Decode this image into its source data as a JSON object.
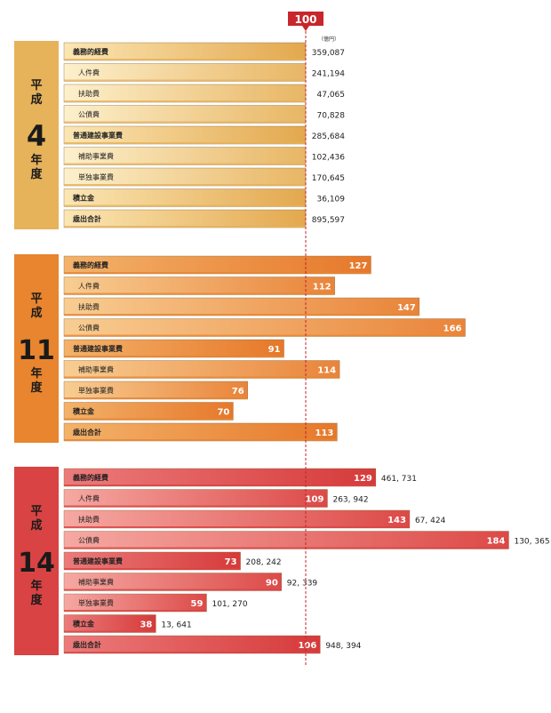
{
  "chart_data": {
    "type": "bar",
    "orientation": "horizontal",
    "reference": {
      "value": 100,
      "label": "100"
    },
    "unit_label": "（億円）",
    "categories": [
      "義務的経費",
      "人件費",
      "扶助費",
      "公債費",
      "普通建設事業費",
      "補助事業費",
      "単独事業費",
      "積立金",
      "歳出合計"
    ],
    "sub_items": [
      false,
      true,
      true,
      true,
      false,
      true,
      true,
      false,
      false
    ],
    "groups": [
      {
        "era": "平成",
        "number": "4",
        "suffix": "年度",
        "color": "#e6b25a",
        "index_values": [
          100,
          100,
          100,
          100,
          100,
          100,
          100,
          100,
          100
        ],
        "amounts": [
          "359,087",
          "241,194",
          "47,065",
          "70,828",
          "285,684",
          "102,436",
          "170,645",
          "36,109",
          "895,597"
        ],
        "show_index_labels": false
      },
      {
        "era": "平成",
        "number": "11",
        "suffix": "年度",
        "color": "#e8852e",
        "index_values": [
          127,
          112,
          147,
          166,
          91,
          114,
          76,
          70,
          113
        ],
        "amounts": [],
        "show_index_labels": true
      },
      {
        "era": "平成",
        "number": "14",
        "suffix": "年度",
        "color": "#d94343",
        "index_values": [
          129,
          109,
          143,
          184,
          73,
          90,
          59,
          38,
          106
        ],
        "amounts": [
          "461, 731",
          "263, 942",
          "67, 424",
          "130, 365",
          "208, 242",
          "92, 339",
          "101, 270",
          "13, 641",
          "948, 394"
        ],
        "show_index_labels": true
      }
    ]
  }
}
